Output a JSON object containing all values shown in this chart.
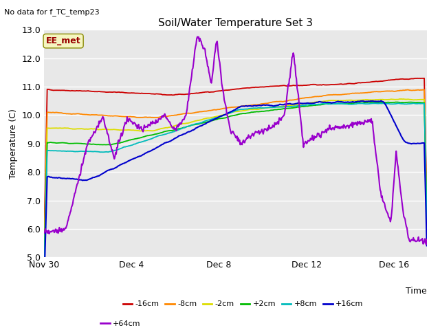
{
  "title": "Soil/Water Temperature Set 3",
  "ylabel": "Temperature (C)",
  "xlabel": "Time",
  "top_left_note": "No data for f_TC_temp23",
  "annotation_box": "EE_met",
  "ylim": [
    5.0,
    13.0
  ],
  "yticks": [
    5.0,
    6.0,
    7.0,
    8.0,
    9.0,
    10.0,
    11.0,
    12.0,
    13.0
  ],
  "xtick_labels": [
    "Nov 30",
    "Dec 4",
    "Dec 8",
    "Dec 12",
    "Dec 16"
  ],
  "xtick_positions": [
    0,
    4,
    8,
    12,
    16
  ],
  "xlim": [
    0,
    17.5
  ],
  "background_color": "#e8e8e8",
  "fig_bg": "#ffffff",
  "series": [
    {
      "label": "-16cm",
      "color": "#cc0000"
    },
    {
      "label": "-8cm",
      "color": "#ff8800"
    },
    {
      "label": "-2cm",
      "color": "#dddd00"
    },
    {
      "label": "+2cm",
      "color": "#00bb00"
    },
    {
      "label": "+8cm",
      "color": "#00bbbb"
    },
    {
      "label": "+16cm",
      "color": "#0000cc"
    },
    {
      "label": "+64cm",
      "color": "#9900cc"
    }
  ],
  "title_fontsize": 11,
  "tick_fontsize": 9,
  "label_fontsize": 9,
  "legend_fontsize": 8,
  "note_fontsize": 8,
  "annot_fontsize": 9
}
